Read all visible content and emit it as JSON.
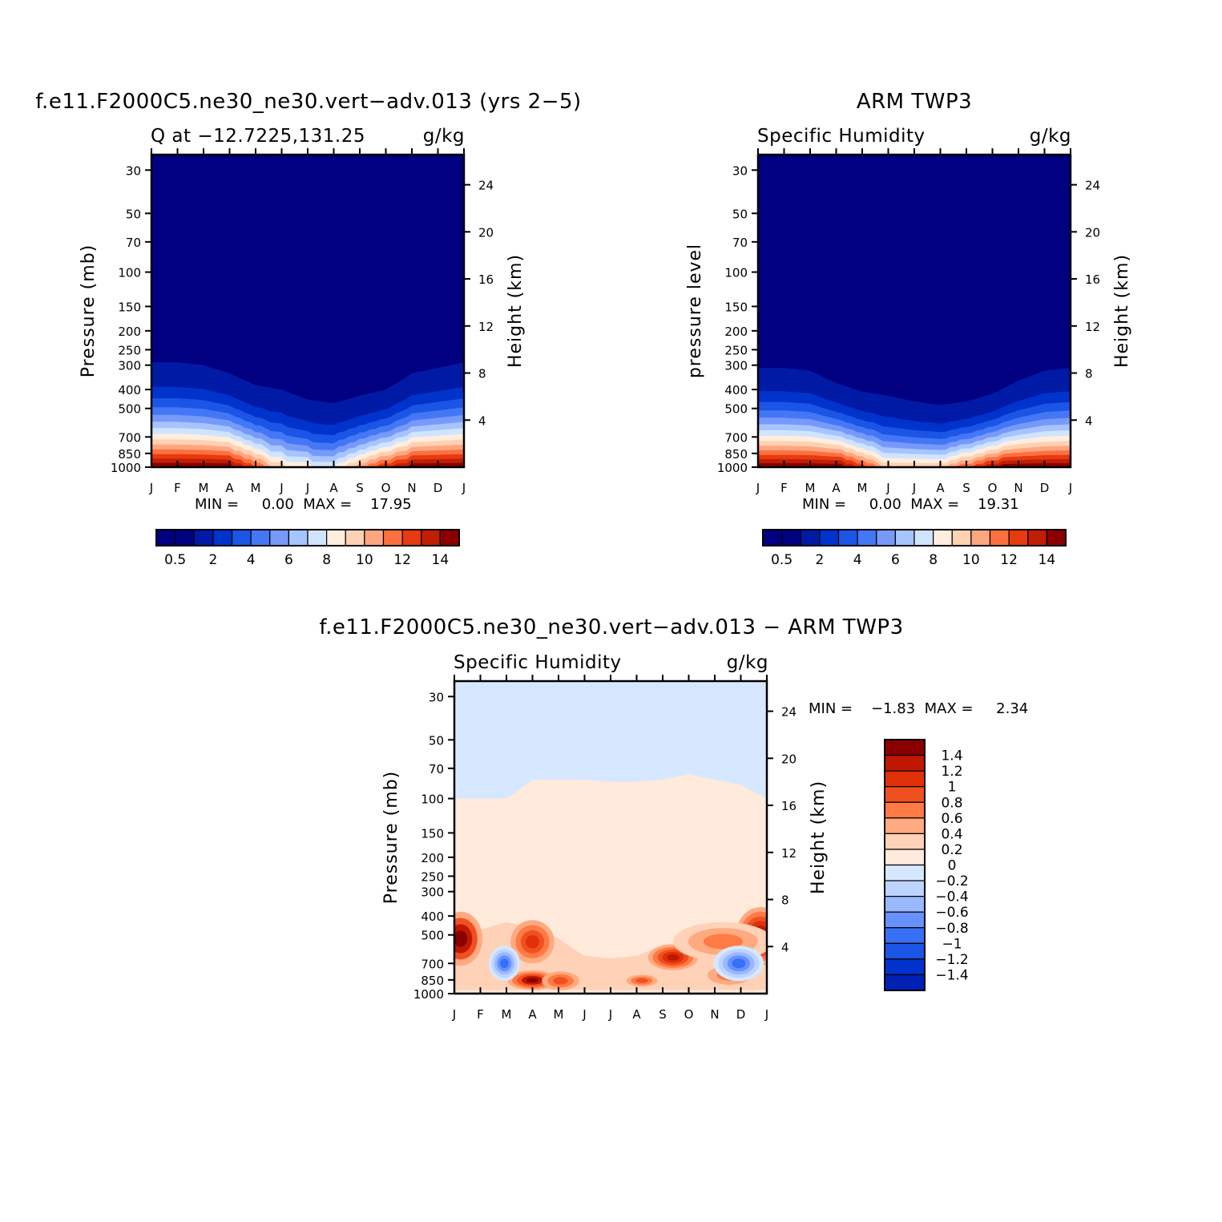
{
  "colors": {
    "q_levels": [
      "#000080",
      "#001aa6",
      "#0033cc",
      "#1a55e6",
      "#4477f5",
      "#7799fa",
      "#a6c4ff",
      "#d1e4ff",
      "#ffeedd",
      "#ffd1b3",
      "#ffa680",
      "#ff7040",
      "#e63a10",
      "#c01e05",
      "#8a0000"
    ],
    "diff_levels": [
      "#000080",
      "#0020b3",
      "#0033cc",
      "#1a55e6",
      "#3670f5",
      "#6691ff",
      "#99b8ff",
      "#bdd4ff",
      "#d6e8ff",
      "#ffeadb",
      "#ffd2b8",
      "#ffaa80",
      "#ff7a45",
      "#f05020",
      "#e03008",
      "#c01800",
      "#8a0000"
    ]
  },
  "chart_data": [
    {
      "type": "heatmap",
      "title": "f.e11.F2000C5.ne30_ne30.vert−adv.013 (yrs 2−5)",
      "left_subtitle": "Q at −12.7225,131.25",
      "right_subtitle": "g/kg",
      "ylabel": "Pressure (mb)",
      "y2label": "Height (km)",
      "xticks": [
        "J",
        "F",
        "M",
        "A",
        "M",
        "J",
        "J",
        "A",
        "S",
        "O",
        "N",
        "D",
        "J"
      ],
      "yticks": [
        30,
        50,
        70,
        100,
        150,
        200,
        250,
        300,
        400,
        500,
        700,
        850,
        1000
      ],
      "y2ticks": [
        24,
        20,
        16,
        12,
        8,
        4
      ],
      "ylim": [
        1000,
        25
      ],
      "stats_text": "MIN =     0.00  MAX =    17.95",
      "min": 0.0,
      "max": 17.95,
      "colorbar_labels": [
        "0.5",
        "2",
        "4",
        "6",
        "8",
        "10",
        "12",
        "14"
      ],
      "moisture_top_mb": [
        290,
        290,
        300,
        330,
        380,
        400,
        450,
        470,
        430,
        400,
        330,
        310,
        290
      ],
      "surface_q_gkg": [
        15.5,
        15.5,
        15.0,
        14.0,
        11.0,
        8.5,
        7.5,
        7.0,
        10.0,
        12.0,
        13.5,
        14.0,
        15.0
      ]
    },
    {
      "type": "heatmap",
      "title": "ARM TWP3",
      "left_subtitle": "Specific Humidity",
      "right_subtitle": "g/kg",
      "ylabel": "pressure level",
      "y2label": "Height (km)",
      "xticks": [
        "J",
        "F",
        "M",
        "A",
        "M",
        "J",
        "J",
        "A",
        "S",
        "O",
        "N",
        "D",
        "J"
      ],
      "yticks": [
        30,
        50,
        70,
        100,
        150,
        200,
        250,
        300,
        400,
        500,
        700,
        850,
        1000
      ],
      "y2ticks": [
        24,
        20,
        16,
        12,
        8,
        4
      ],
      "ylim": [
        1000,
        25
      ],
      "stats_text": "MIN =     0.00  MAX =    19.31",
      "min": 0.0,
      "max": 19.31,
      "colorbar_labels": [
        "0.5",
        "2",
        "4",
        "6",
        "8",
        "10",
        "12",
        "14"
      ],
      "moisture_top_mb": [
        310,
        310,
        320,
        370,
        410,
        430,
        460,
        480,
        460,
        420,
        360,
        320,
        310
      ],
      "surface_q_gkg": [
        17.5,
        17.5,
        16.5,
        14.5,
        11.5,
        9.0,
        8.5,
        8.5,
        11.0,
        13.0,
        15.0,
        16.5,
        17.5
      ]
    },
    {
      "type": "heatmap",
      "title": "f.e11.F2000C5.ne30_ne30.vert−adv.013 − ARM TWP3",
      "left_subtitle": "Specific Humidity",
      "right_subtitle": "g/kg",
      "ylabel": "Pressure (mb)",
      "y2label": "Height (km)",
      "xticks": [
        "J",
        "F",
        "M",
        "A",
        "M",
        "J",
        "J",
        "A",
        "S",
        "O",
        "N",
        "D",
        "J"
      ],
      "yticks": [
        30,
        50,
        70,
        100,
        150,
        200,
        250,
        300,
        400,
        500,
        700,
        850,
        1000
      ],
      "y2ticks": [
        24,
        20,
        16,
        12,
        8,
        4
      ],
      "ylim": [
        1000,
        25
      ],
      "stats_text": "MIN =    −1.83  MAX =     2.34",
      "min": -1.83,
      "max": 2.34,
      "colorbar_labels": [
        "1.4",
        "1.2",
        "1",
        "0.8",
        "0.6",
        "0.4",
        "0.2",
        "0",
        "−0.2",
        "−0.4",
        "−0.6",
        "−0.8",
        "−1",
        "−1.2",
        "−1.4"
      ],
      "upper_boundary_mb": [
        100,
        100,
        100,
        80,
        80,
        80,
        82,
        82,
        80,
        75,
        80,
        85,
        100
      ],
      "upper_anomaly": 0.1,
      "stratosphere_anomaly": -0.1
    }
  ]
}
